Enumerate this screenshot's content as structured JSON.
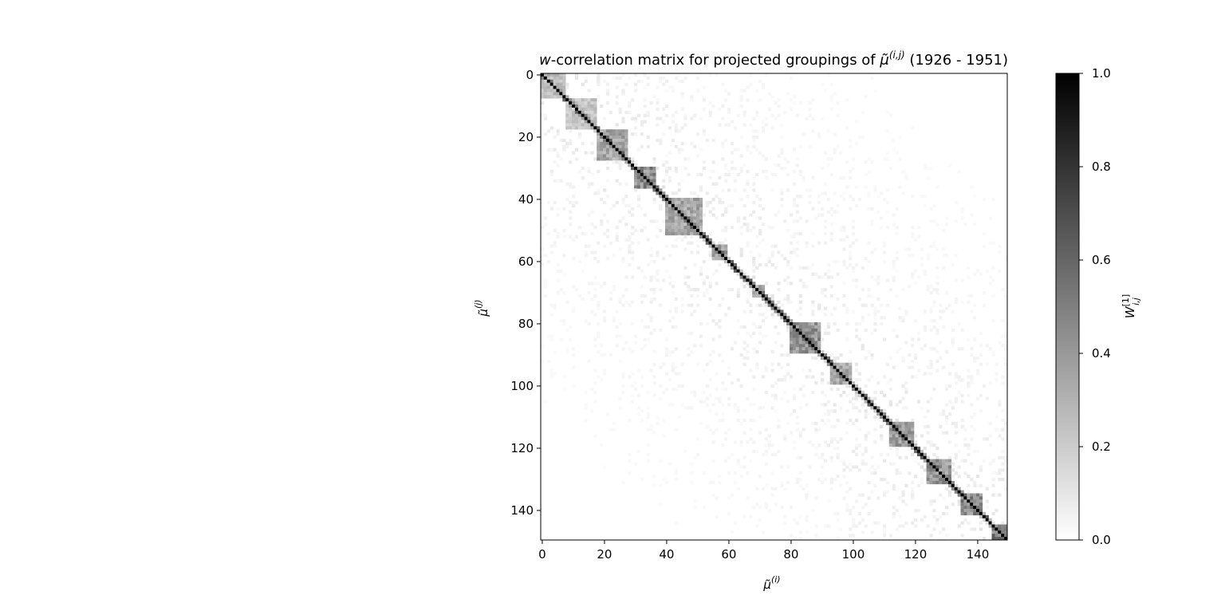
{
  "chart_data": {
    "type": "heatmap",
    "title": {
      "w": "w",
      "pre": "-correlation matrix for projected groupings of ",
      "mu": "μ̃",
      "sup": "(i,j)",
      "post": " (1926 - 1951)"
    },
    "xlabel": {
      "mu": "μ̃",
      "sup": "(i)"
    },
    "ylabel": {
      "mu": "μ̃",
      "sup": "(j)"
    },
    "colorbar_label": {
      "main": "W",
      "sup": "[1]",
      "sub": "i,j"
    },
    "n": 150,
    "xlim": [
      0,
      150
    ],
    "ylim": [
      150,
      0
    ],
    "x_ticks": [
      "0",
      "20",
      "40",
      "60",
      "80",
      "100",
      "120",
      "140"
    ],
    "y_ticks": [
      "0",
      "20",
      "40",
      "60",
      "80",
      "100",
      "120",
      "140"
    ],
    "colorbar_ticks": [
      "0.0",
      "0.2",
      "0.4",
      "0.6",
      "0.8",
      "1.0"
    ],
    "colorbar_range": [
      0,
      1
    ],
    "colormap": "gray_r",
    "diagonal_value": 1.0,
    "blocks": [
      {
        "start": 0,
        "end": 8,
        "value": 0.35
      },
      {
        "start": 8,
        "end": 18,
        "value": 0.3
      },
      {
        "start": 18,
        "end": 28,
        "value": 0.45
      },
      {
        "start": 30,
        "end": 37,
        "value": 0.6
      },
      {
        "start": 40,
        "end": 52,
        "value": 0.45
      },
      {
        "start": 55,
        "end": 60,
        "value": 0.5
      },
      {
        "start": 68,
        "end": 72,
        "value": 0.45
      },
      {
        "start": 80,
        "end": 90,
        "value": 0.55
      },
      {
        "start": 93,
        "end": 100,
        "value": 0.45
      },
      {
        "start": 112,
        "end": 120,
        "value": 0.5
      },
      {
        "start": 124,
        "end": 132,
        "value": 0.55
      },
      {
        "start": 135,
        "end": 142,
        "value": 0.6
      },
      {
        "start": 145,
        "end": 150,
        "value": 0.7
      }
    ]
  }
}
